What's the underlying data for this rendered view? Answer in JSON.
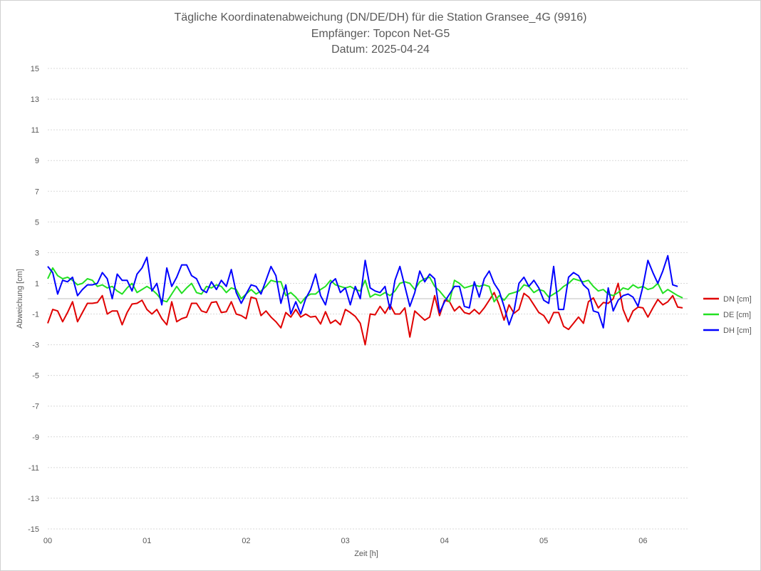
{
  "chart_data": {
    "type": "line",
    "title_lines": [
      "Tägliche Koordinatenabweichung (DN/DE/DH) für die Station Gransee_4G (9916)",
      "Empfänger: Topcon Net-G5",
      "Datum: 2025-04-24"
    ],
    "xlabel": "Zeit [h]",
    "ylabel": "Abweichung [cm]",
    "ylim": [
      -15,
      15
    ],
    "yticks": [
      15,
      13,
      11,
      9,
      7,
      5,
      3,
      1,
      -1,
      -3,
      -5,
      -7,
      -9,
      -11,
      -13,
      -15
    ],
    "xlim": [
      0,
      6.45
    ],
    "xticks": [
      {
        "value": 0,
        "label": "00"
      },
      {
        "value": 1,
        "label": "01"
      },
      {
        "value": 2,
        "label": "02"
      },
      {
        "value": 3,
        "label": "03"
      },
      {
        "value": 4,
        "label": "04"
      },
      {
        "value": 5,
        "label": "05"
      },
      {
        "value": 6,
        "label": "06"
      }
    ],
    "grid": "horizontal-dotted",
    "legend_position": "right",
    "x_step_hours": 0.05,
    "series": [
      {
        "name": "DN [cm]",
        "color": "#e00000",
        "values": [
          -1.6,
          -0.7,
          -0.8,
          -1.5,
          -0.9,
          -0.2,
          -1.5,
          -0.9,
          -0.3,
          -0.3,
          -0.25,
          0.2,
          -1.0,
          -0.8,
          -0.8,
          -1.7,
          -0.9,
          -0.35,
          -0.3,
          -0.1,
          -0.7,
          -1.0,
          -0.7,
          -1.3,
          -1.7,
          -0.2,
          -1.5,
          -1.3,
          -1.2,
          -0.3,
          -0.3,
          -0.8,
          -0.9,
          -0.25,
          -0.2,
          -0.9,
          -0.85,
          -0.2,
          -1.0,
          -1.1,
          -1.3,
          0.1,
          0.0,
          -1.1,
          -0.8,
          -1.2,
          -1.5,
          -1.9,
          -0.9,
          -1.2,
          -0.7,
          -1.2,
          -1.0,
          -1.2,
          -1.15,
          -1.65,
          -0.85,
          -1.6,
          -1.4,
          -1.7,
          -0.7,
          -0.9,
          -1.15,
          -1.6,
          -3.0,
          -1.0,
          -1.05,
          -0.5,
          -0.95,
          -0.4,
          -1.0,
          -1.0,
          -0.6,
          -2.5,
          -0.8,
          -1.1,
          -1.4,
          -1.2,
          0.2,
          -1.1,
          -0.1,
          -0.2,
          -0.8,
          -0.5,
          -0.9,
          -1.0,
          -0.7,
          -1.0,
          -0.6,
          -0.1,
          0.4,
          -0.4,
          -1.4,
          -0.4,
          -0.95,
          -0.7,
          0.35,
          0.1,
          -0.4,
          -0.9,
          -1.1,
          -1.6,
          -0.9,
          -0.9,
          -1.8,
          -2.0,
          -1.6,
          -1.2,
          -1.6,
          -0.2,
          0.05,
          -0.6,
          -0.25,
          -0.3,
          0.0,
          1.0,
          -0.7,
          -1.5,
          -0.8,
          -0.55,
          -0.6,
          -1.2,
          -0.6,
          -0.05,
          -0.4,
          -0.2,
          0.2,
          -0.55,
          -0.6
        ]
      },
      {
        "name": "DE [cm]",
        "color": "#22e022",
        "values": [
          1.3,
          2.0,
          1.5,
          1.3,
          1.4,
          1.2,
          0.9,
          1.0,
          1.3,
          1.2,
          0.8,
          0.9,
          0.7,
          0.8,
          0.5,
          0.3,
          0.7,
          1.0,
          0.4,
          0.6,
          0.8,
          0.6,
          0.3,
          -0.1,
          -0.2,
          0.3,
          0.8,
          0.35,
          0.7,
          1.0,
          0.4,
          0.3,
          0.8,
          0.7,
          0.9,
          0.8,
          0.4,
          0.7,
          0.6,
          0.0,
          0.3,
          0.6,
          0.3,
          0.5,
          0.8,
          1.2,
          1.1,
          1.1,
          0.2,
          0.4,
          0.1,
          -0.3,
          0.1,
          0.3,
          0.3,
          0.6,
          0.8,
          1.2,
          0.9,
          0.8,
          0.7,
          0.8,
          0.6,
          0.5,
          1.2,
          0.1,
          0.3,
          0.2,
          0.4,
          0.2,
          0.5,
          1.0,
          1.1,
          1.0,
          0.6,
          1.1,
          1.3,
          1.4,
          0.8,
          0.5,
          0.1,
          -0.2,
          1.2,
          1.0,
          0.7,
          0.8,
          0.9,
          0.8,
          0.9,
          0.8,
          -0.2,
          0.2,
          -0.1,
          0.3,
          0.4,
          0.5,
          0.9,
          0.8,
          0.4,
          0.6,
          0.5,
          0.1,
          0.3,
          0.5,
          0.8,
          1.0,
          1.3,
          1.2,
          1.1,
          1.2,
          0.8,
          0.5,
          0.6,
          0.3,
          0.2,
          0.4,
          0.7,
          0.6,
          0.9,
          0.7,
          0.8,
          0.6,
          0.7,
          1.0,
          0.35,
          0.6,
          0.4,
          0.2,
          0.05
        ]
      },
      {
        "name": "DH [cm]",
        "color": "#0000ff",
        "values": [
          2.1,
          1.7,
          0.3,
          1.2,
          1.1,
          1.4,
          0.2,
          0.6,
          0.9,
          0.9,
          1.0,
          1.7,
          1.3,
          0.0,
          1.6,
          1.2,
          1.2,
          0.5,
          1.6,
          2.0,
          2.7,
          0.5,
          1.0,
          -0.4,
          2.0,
          0.8,
          1.4,
          2.2,
          2.2,
          1.5,
          1.3,
          0.6,
          0.4,
          1.1,
          0.6,
          1.2,
          0.8,
          1.9,
          0.4,
          -0.3,
          0.3,
          0.9,
          0.8,
          0.3,
          1.2,
          2.1,
          1.5,
          -0.3,
          0.9,
          -1.0,
          -0.2,
          -1.0,
          0.0,
          0.6,
          1.6,
          0.2,
          -0.4,
          1.0,
          1.3,
          0.4,
          0.7,
          -0.4,
          0.8,
          0.0,
          2.5,
          0.7,
          0.5,
          0.4,
          0.8,
          -0.7,
          1.2,
          2.1,
          0.8,
          -0.5,
          0.4,
          1.8,
          1.1,
          1.6,
          1.3,
          -0.9,
          -0.2,
          0.3,
          0.8,
          0.8,
          -0.5,
          -0.6,
          1.1,
          0.1,
          1.3,
          1.8,
          1.0,
          0.5,
          -0.5,
          -1.7,
          -0.8,
          1.0,
          1.4,
          0.8,
          1.2,
          0.7,
          -0.1,
          -0.3,
          2.1,
          -0.7,
          -0.7,
          1.4,
          1.7,
          1.5,
          0.9,
          0.6,
          -0.8,
          -0.9,
          -1.9,
          0.7,
          -0.8,
          -0.1,
          0.2,
          0.3,
          0.1,
          -0.5,
          0.8,
          2.5,
          1.7,
          1.0,
          1.8,
          2.8,
          0.9,
          0.8
        ]
      }
    ]
  }
}
